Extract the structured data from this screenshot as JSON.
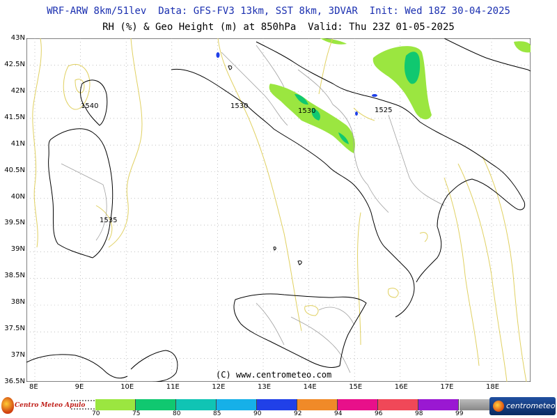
{
  "header": {
    "title_line1": "WRF-ARW 8km/51lev  Data: GFS-FV3 13km, SST 8km, 3DVAR  Init: Wed 18Z 30-04-2025",
    "title_line2": "RH (%) & Geo Height (m) at 850hPa  Valid: Thu 23Z 01-05-2025"
  },
  "map": {
    "lat_labels": [
      "43N",
      "42.5N",
      "42N",
      "41.5N",
      "41N",
      "40.5N",
      "40N",
      "39.5N",
      "39N",
      "38.5N",
      "38N",
      "37.5N",
      "37N",
      "36.5N"
    ],
    "lon_labels": [
      "8E",
      "9E",
      "10E",
      "11E",
      "12E",
      "13E",
      "14E",
      "15E",
      "16E",
      "17E",
      "18E"
    ],
    "contour_labels": [
      "1540",
      "1530",
      "1530",
      "1525",
      "1535"
    ],
    "copyright": "(C) www.centrometeo.com",
    "colors": {
      "coast": "#000000",
      "borders": "#a0a0a0",
      "contour": "#e0d060",
      "grid": "#999999"
    }
  },
  "colorbar": {
    "labels": [
      "70",
      "75",
      "80",
      "85",
      "90",
      "92",
      "94",
      "96",
      "98",
      "99"
    ],
    "colors": [
      "#9be640",
      "#10c870",
      "#10c4b4",
      "#16b0e8",
      "#2040e8",
      "#f08a28",
      "#e8108a",
      "#f04858",
      "#9a18d2"
    ]
  },
  "logos": {
    "left_text": "Centro Meteo Apulo",
    "right_text": "centrometeo"
  }
}
